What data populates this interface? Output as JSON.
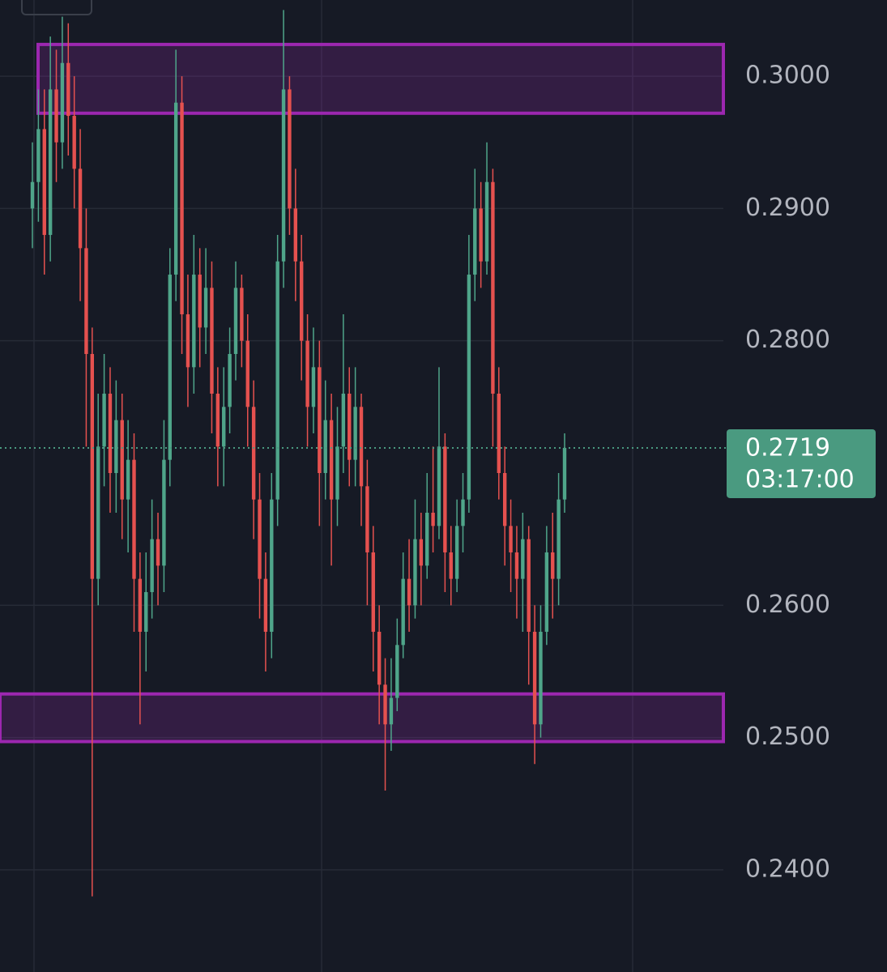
{
  "chart_data": {
    "type": "candlestick",
    "up_color": "#4fa58a",
    "down_color": "#e5514f",
    "ylim": [
      0.23228,
      0.30576
    ],
    "yticks": [
      {
        "value": 0.24,
        "label": "0.2400"
      },
      {
        "value": 0.25,
        "label": "0.2500"
      },
      {
        "value": 0.26,
        "label": "0.2600"
      },
      {
        "value": 0.28,
        "label": "0.2800"
      },
      {
        "value": 0.29,
        "label": "0.2900"
      },
      {
        "value": 0.3,
        "label": "0.3000"
      }
    ],
    "grid": true,
    "open": [
      0.29,
      0.292,
      0.296,
      0.288,
      0.299,
      0.295,
      0.301,
      0.297,
      0.293,
      0.287,
      0.279,
      0.262,
      0.272,
      0.276,
      0.27,
      0.274,
      0.268,
      0.271,
      0.262,
      0.258,
      0.261,
      0.265,
      0.263,
      0.271,
      0.285,
      0.298,
      0.282,
      0.278,
      0.285,
      0.281,
      0.284,
      0.276,
      0.272,
      0.275,
      0.279,
      0.284,
      0.28,
      0.275,
      0.268,
      0.262,
      0.258,
      0.268,
      0.286,
      0.299,
      0.29,
      0.286,
      0.28,
      0.275,
      0.278,
      0.27,
      0.274,
      0.268,
      0.272,
      0.276,
      0.271,
      0.275,
      0.269,
      0.264,
      0.258,
      0.254,
      0.251,
      0.253,
      0.257,
      0.262,
      0.26,
      0.265,
      0.263,
      0.267,
      0.266,
      0.272,
      0.264,
      0.262,
      0.266,
      0.268,
      0.285,
      0.29,
      0.286,
      0.292,
      0.276,
      0.27,
      0.266,
      0.264,
      0.262,
      0.265,
      0.258,
      0.251,
      0.258,
      0.264,
      0.262,
      0.268
    ],
    "high": [
      0.295,
      0.299,
      0.299,
      0.303,
      0.302,
      0.3045,
      0.304,
      0.3,
      0.296,
      0.29,
      0.281,
      0.276,
      0.279,
      0.278,
      0.277,
      0.276,
      0.274,
      0.273,
      0.264,
      0.264,
      0.268,
      0.267,
      0.274,
      0.287,
      0.302,
      0.3,
      0.285,
      0.288,
      0.287,
      0.287,
      0.286,
      0.278,
      0.278,
      0.281,
      0.286,
      0.285,
      0.282,
      0.277,
      0.27,
      0.264,
      0.27,
      0.288,
      0.305,
      0.3,
      0.293,
      0.288,
      0.282,
      0.281,
      0.28,
      0.277,
      0.276,
      0.275,
      0.282,
      0.278,
      0.278,
      0.276,
      0.271,
      0.266,
      0.26,
      0.256,
      0.256,
      0.259,
      0.264,
      0.265,
      0.268,
      0.267,
      0.27,
      0.272,
      0.278,
      0.273,
      0.266,
      0.268,
      0.27,
      0.288,
      0.293,
      0.292,
      0.295,
      0.293,
      0.278,
      0.272,
      0.268,
      0.266,
      0.267,
      0.266,
      0.26,
      0.26,
      0.266,
      0.267,
      0.27,
      0.273
    ],
    "low": [
      0.287,
      0.289,
      0.285,
      0.286,
      0.292,
      0.293,
      0.294,
      0.29,
      0.283,
      0.272,
      0.238,
      0.26,
      0.269,
      0.267,
      0.267,
      0.265,
      0.264,
      0.258,
      0.251,
      0.255,
      0.259,
      0.26,
      0.261,
      0.269,
      0.283,
      0.279,
      0.275,
      0.276,
      0.278,
      0.279,
      0.273,
      0.269,
      0.269,
      0.273,
      0.277,
      0.278,
      0.272,
      0.265,
      0.259,
      0.255,
      0.256,
      0.266,
      0.284,
      0.288,
      0.283,
      0.277,
      0.272,
      0.273,
      0.266,
      0.268,
      0.263,
      0.266,
      0.27,
      0.269,
      0.269,
      0.266,
      0.26,
      0.255,
      0.251,
      0.246,
      0.249,
      0.252,
      0.256,
      0.258,
      0.259,
      0.26,
      0.262,
      0.264,
      0.265,
      0.261,
      0.26,
      0.261,
      0.264,
      0.267,
      0.283,
      0.284,
      0.285,
      0.272,
      0.268,
      0.263,
      0.261,
      0.259,
      0.258,
      0.254,
      0.248,
      0.25,
      0.257,
      0.259,
      0.26,
      0.267
    ],
    "close": [
      0.292,
      0.296,
      0.288,
      0.299,
      0.295,
      0.301,
      0.297,
      0.293,
      0.287,
      0.279,
      0.262,
      0.272,
      0.276,
      0.27,
      0.274,
      0.268,
      0.271,
      0.262,
      0.258,
      0.261,
      0.265,
      0.263,
      0.271,
      0.285,
      0.298,
      0.282,
      0.278,
      0.285,
      0.281,
      0.284,
      0.276,
      0.272,
      0.275,
      0.279,
      0.284,
      0.28,
      0.275,
      0.268,
      0.262,
      0.258,
      0.268,
      0.286,
      0.299,
      0.29,
      0.286,
      0.28,
      0.275,
      0.278,
      0.27,
      0.274,
      0.268,
      0.272,
      0.276,
      0.271,
      0.275,
      0.269,
      0.264,
      0.258,
      0.254,
      0.251,
      0.253,
      0.257,
      0.262,
      0.26,
      0.265,
      0.263,
      0.267,
      0.266,
      0.272,
      0.264,
      0.262,
      0.266,
      0.268,
      0.285,
      0.29,
      0.286,
      0.292,
      0.276,
      0.27,
      0.266,
      0.264,
      0.262,
      0.265,
      0.258,
      0.251,
      0.258,
      0.264,
      0.262,
      0.268,
      0.2719
    ],
    "zones": [
      {
        "top": 0.3024,
        "bottom": 0.2972,
        "color": "#9c27b0"
      },
      {
        "top": 0.2533,
        "bottom": 0.2497,
        "color": "#9c27b0"
      }
    ],
    "last_price": 0.2719,
    "countdown": "03:17:00",
    "price_tag_color": "#4a9a80"
  }
}
